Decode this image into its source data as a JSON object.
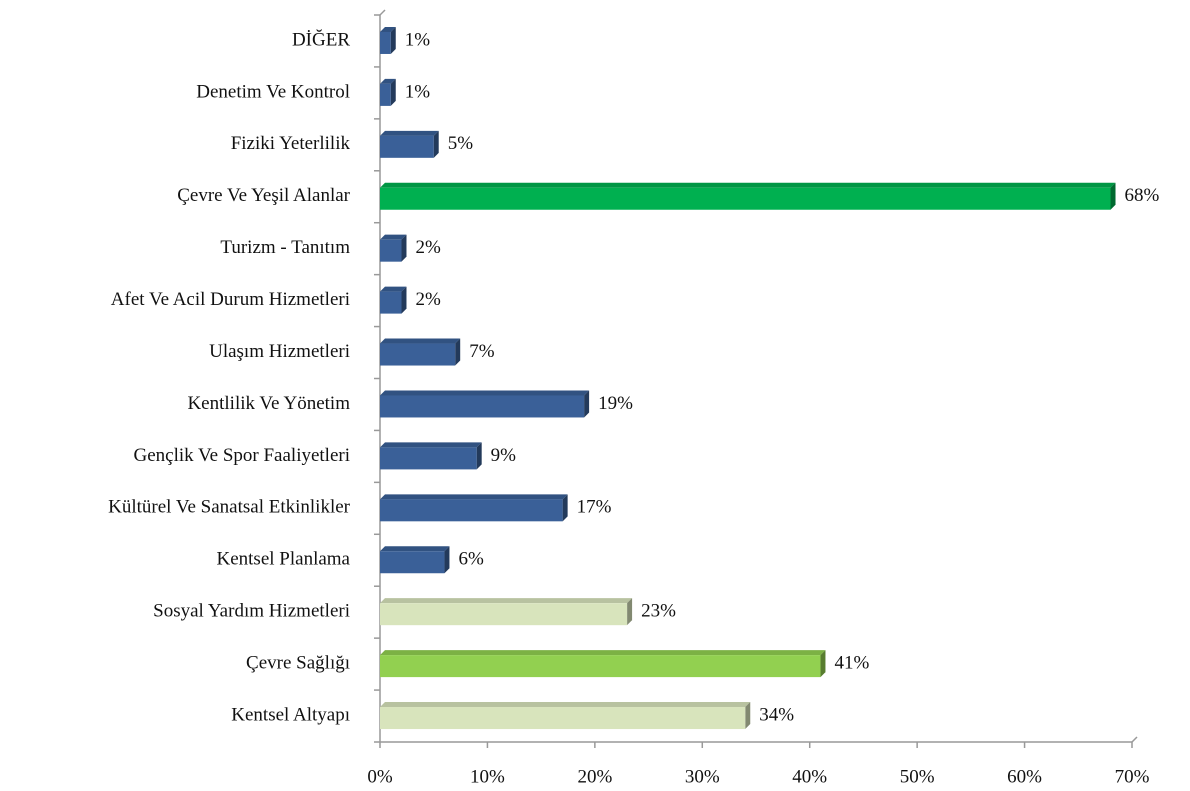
{
  "chart_data": {
    "type": "bar",
    "orientation": "horizontal",
    "categories": [
      "DİĞER",
      "Denetim Ve Kontrol",
      "Fiziki Yeterlilik",
      "Çevre Ve Yeşil Alanlar",
      "Turizm - Tanıtım",
      "Afet Ve Acil Durum Hizmetleri",
      "Ulaşım Hizmetleri",
      "Kentlilik Ve Yönetim",
      "Gençlik Ve Spor Faaliyetleri",
      "Kültürel Ve Sanatsal Etkinlikler",
      "Kentsel Planlama",
      "Sosyal Yardım Hizmetleri",
      "Çevre Sağlığı",
      "Kentsel Altyapı"
    ],
    "values": [
      1,
      1,
      5,
      68,
      2,
      2,
      7,
      19,
      9,
      17,
      6,
      23,
      41,
      34
    ],
    "value_labels": [
      "1%",
      "1%",
      "5%",
      "68%",
      "2%",
      "2%",
      "7%",
      "19%",
      "9%",
      "17%",
      "6%",
      "23%",
      "41%",
      "34%"
    ],
    "colors": [
      "#3a6098",
      "#3a6098",
      "#3a6098",
      "#00b050",
      "#3a6098",
      "#3a6098",
      "#3a6098",
      "#3a6098",
      "#3a6098",
      "#3a6098",
      "#3a6098",
      "#d8e4bc",
      "#92d050",
      "#d8e4bc"
    ],
    "xlim": [
      0,
      70
    ],
    "xticks": [
      {
        "value": 0,
        "label": "0%"
      },
      {
        "value": 10,
        "label": "10%"
      },
      {
        "value": 20,
        "label": "20%"
      },
      {
        "value": 30,
        "label": "30%"
      },
      {
        "value": 40,
        "label": "40%"
      },
      {
        "value": 50,
        "label": "50%"
      },
      {
        "value": 60,
        "label": "60%"
      },
      {
        "value": 70,
        "label": "70%"
      }
    ],
    "grid": false
  }
}
